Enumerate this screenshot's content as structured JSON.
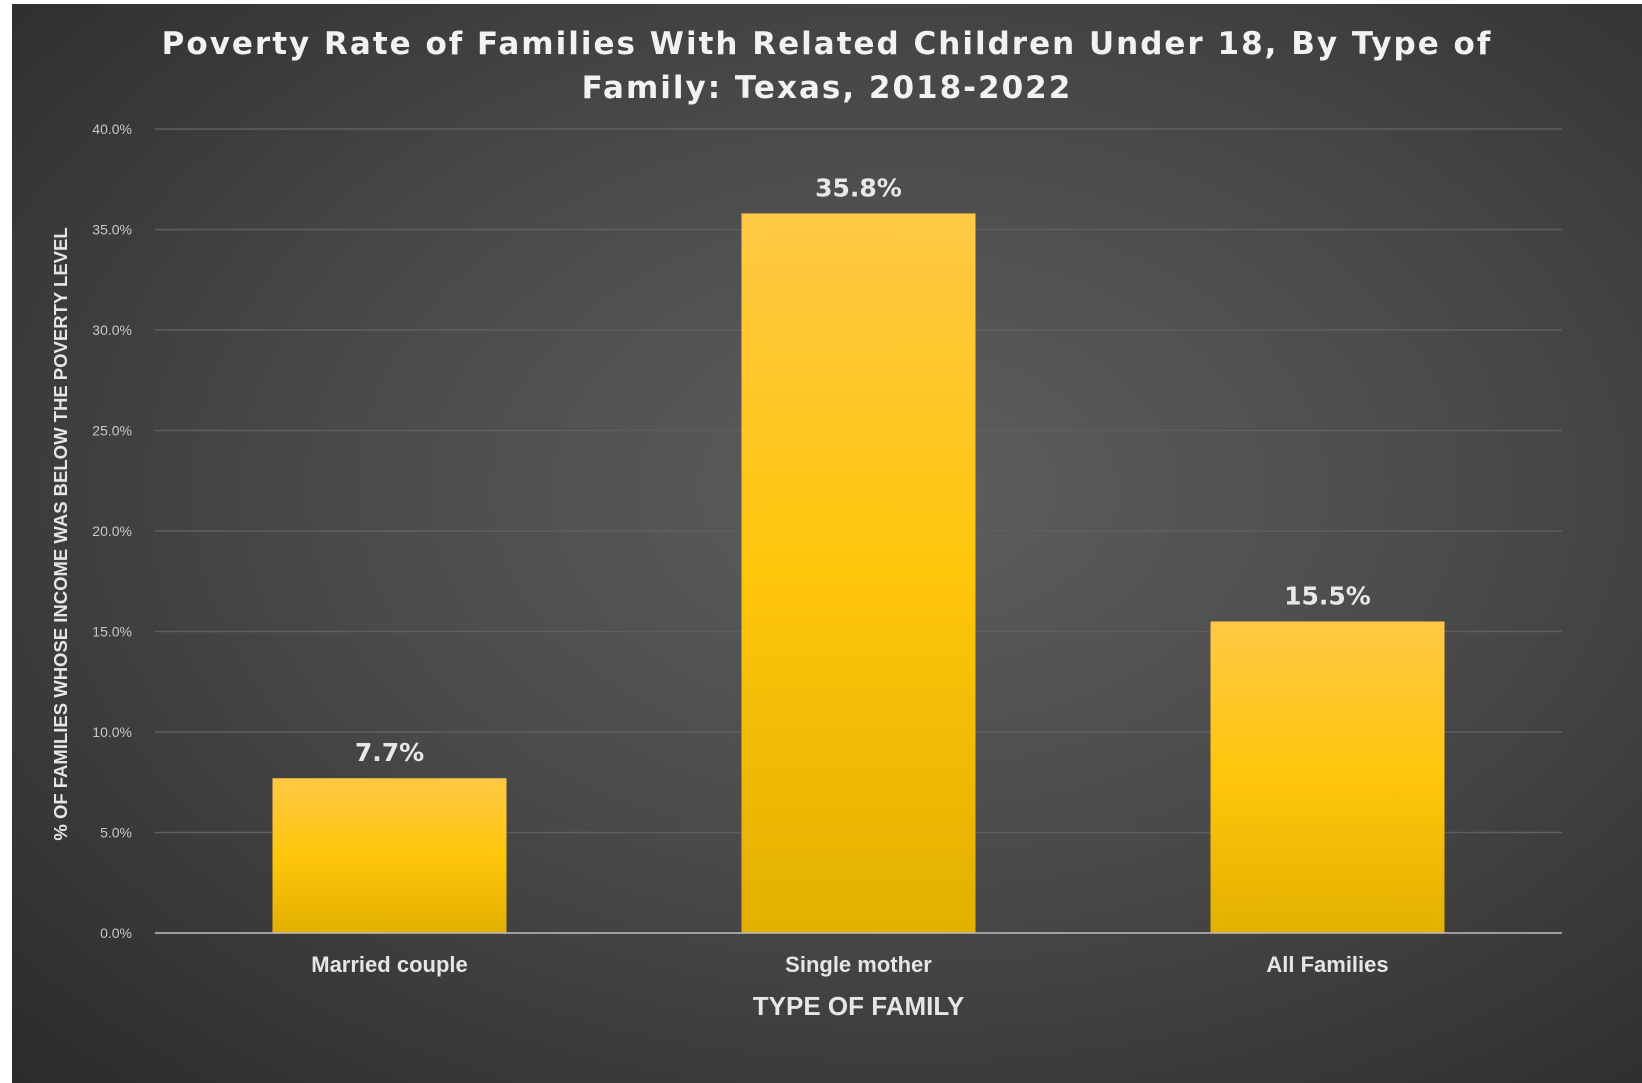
{
  "chart_data": {
    "type": "bar",
    "title_lines": [
      "Poverty Rate of Families With Related Children Under 18, By Type of",
      "Family: Texas, 2018-2022"
    ],
    "categories": [
      "Married couple",
      "Single mother",
      "All Families"
    ],
    "values": [
      7.7,
      35.8,
      15.5
    ],
    "data_labels": [
      "7.7%",
      "35.8%",
      "15.5%"
    ],
    "xlabel": "TYPE OF FAMILY",
    "ylabel": "% OF FAMILIES WHOSE INCOME WAS BELOW THE POVERTY LEVEL",
    "ylim": [
      0,
      40
    ],
    "yticks": [
      0,
      5,
      10,
      15,
      20,
      25,
      30,
      35,
      40
    ],
    "ytick_labels": [
      "0.0%",
      "5.0%",
      "10.0%",
      "15.0%",
      "20.0%",
      "25.0%",
      "30.0%",
      "35.0%",
      "40.0%"
    ],
    "grid": true,
    "legend": "none",
    "bar_color": "#FFC000",
    "background_color": "#404040"
  }
}
